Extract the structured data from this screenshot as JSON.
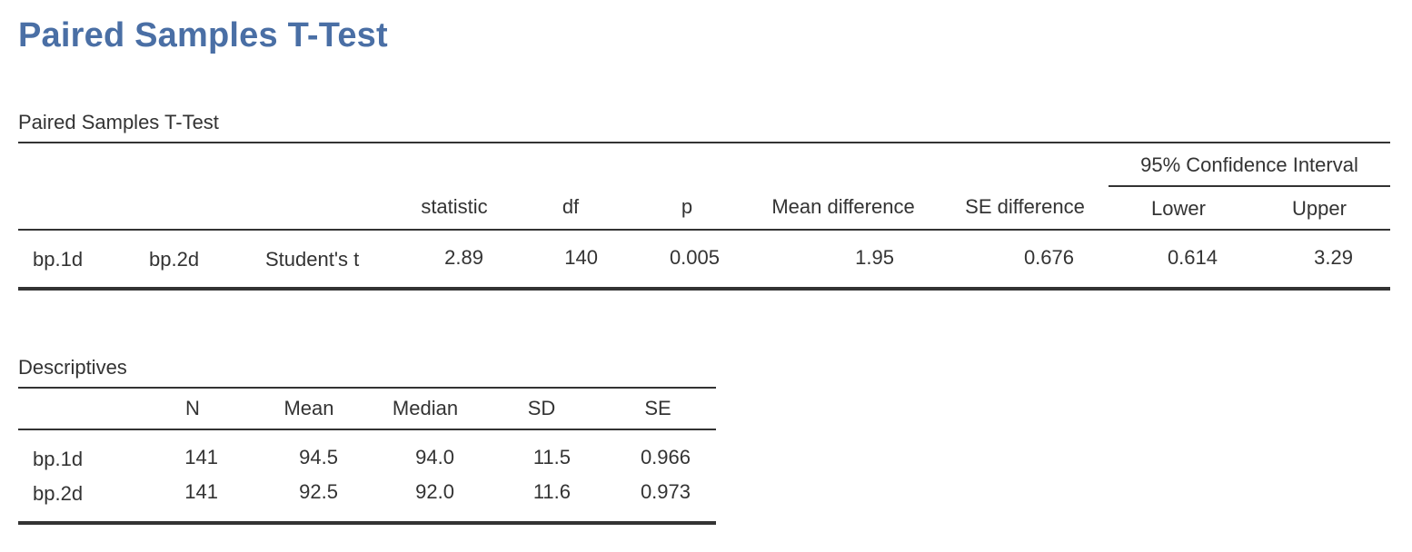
{
  "title": "Paired Samples T-Test",
  "ttest": {
    "caption": "Paired Samples T-Test",
    "ci_header": "95% Confidence Interval",
    "headers": {
      "statistic": "statistic",
      "df": "df",
      "p": "p",
      "mean_difference": "Mean difference",
      "se_difference": "SE difference",
      "lower": "Lower",
      "upper": "Upper"
    },
    "row": {
      "var1": "bp.1d",
      "var2": "bp.2d",
      "test": "Student's t",
      "statistic": "2.89",
      "df": "140",
      "p": "0.005",
      "mean_difference": "1.95",
      "se_difference": "0.676",
      "lower": "0.614",
      "upper": "3.29"
    }
  },
  "descriptives": {
    "caption": "Descriptives",
    "headers": {
      "n": "N",
      "mean": "Mean",
      "median": "Median",
      "sd": "SD",
      "se": "SE"
    },
    "rows": [
      {
        "name": "bp.1d",
        "n": "141",
        "mean": "94.5",
        "median": "94.0",
        "sd": "11.5",
        "se": "0.966"
      },
      {
        "name": "bp.2d",
        "n": "141",
        "mean": "92.5",
        "median": "92.0",
        "sd": "11.6",
        "se": "0.973"
      }
    ]
  }
}
